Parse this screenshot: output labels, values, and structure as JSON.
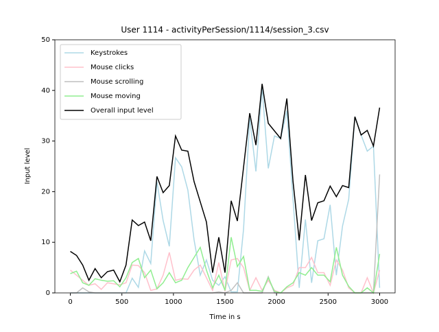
{
  "chart_data": {
    "type": "line",
    "title": "User 1114 - activityPerSession/1114/session_3.csv",
    "x_label": "Time in s",
    "y_label": "Input level",
    "xlim": [
      -150,
      3150
    ],
    "ylim": [
      0,
      50
    ],
    "xticks": [
      0,
      500,
      1000,
      1500,
      2000,
      2500,
      3000
    ],
    "yticks": [
      0,
      10,
      20,
      30,
      40,
      50
    ],
    "legend": "upper left",
    "x": [
      0,
      60,
      120,
      180,
      240,
      300,
      360,
      420,
      480,
      540,
      600,
      660,
      720,
      780,
      840,
      900,
      960,
      1020,
      1080,
      1140,
      1200,
      1260,
      1320,
      1380,
      1440,
      1500,
      1560,
      1620,
      1680,
      1740,
      1800,
      1860,
      1920,
      1980,
      2040,
      2100,
      2160,
      2220,
      2280,
      2340,
      2400,
      2460,
      2520,
      2580,
      2640,
      2700,
      2760,
      2820,
      2880,
      2940,
      3000
    ],
    "series": [
      {
        "name": "Keystrokes",
        "color": "#add8e6",
        "values": [
          0,
          0,
          0,
          0,
          0,
          0,
          0,
          0,
          0,
          0,
          2.9,
          1.1,
          8.3,
          5.8,
          22,
          14.3,
          9.2,
          26.7,
          24.9,
          20.3,
          10.5,
          3.5,
          6.5,
          2.5,
          1.5,
          3.2,
          0.2,
          0.2,
          12.6,
          34.5,
          24,
          40.5,
          24.6,
          31,
          30.5,
          36,
          18.5,
          1,
          14.5,
          2,
          10.3,
          10.7,
          17.4,
          3.5,
          13.2,
          18.5,
          34.8,
          31.2,
          28,
          29,
          1
        ]
      },
      {
        "name": "Mouse clicks",
        "color": "#ffc0cb",
        "values": [
          4.5,
          3.5,
          2.5,
          1.5,
          1.8,
          0.7,
          2,
          1.8,
          1.6,
          2,
          5.5,
          5.4,
          4,
          0.5,
          0.8,
          3.5,
          8,
          2.5,
          2.8,
          2.7,
          4.5,
          5.5,
          3,
          0.5,
          6,
          0.3,
          6.5,
          6.8,
          5,
          0.5,
          3,
          0.5,
          2.5,
          0.5,
          0,
          1,
          1.5,
          5,
          5,
          7,
          4,
          4,
          1.5,
          6.5,
          4.5,
          1,
          0,
          0,
          3,
          0,
          4.5
        ]
      },
      {
        "name": "Mouse scrolling",
        "color": "#bfbfbf",
        "values": [
          0,
          0,
          1,
          0.2,
          0,
          0,
          0,
          0,
          0,
          0,
          0,
          0,
          0,
          0,
          0,
          0,
          0,
          0,
          0,
          0,
          0,
          0,
          0,
          0,
          0.2,
          0,
          0.5,
          2,
          0,
          0,
          0,
          0,
          3.2,
          0,
          0,
          0,
          0,
          0,
          0,
          0,
          0,
          0,
          0,
          0,
          0,
          0,
          0,
          0,
          0,
          0,
          23.4
        ]
      },
      {
        "name": "Mouse moving",
        "color": "#90ee90",
        "values": [
          3.8,
          4.3,
          2,
          1.5,
          2.8,
          2.5,
          2.3,
          2.4,
          1.2,
          3,
          6,
          6.8,
          3,
          4.5,
          0.8,
          2,
          4,
          2,
          2.5,
          5,
          7,
          9,
          4.5,
          1,
          3.5,
          0.5,
          11,
          5.2,
          7.2,
          0.5,
          0.5,
          0.3,
          3,
          0.3,
          0,
          1.2,
          2,
          4,
          3.5,
          5,
          3.5,
          3.5,
          2.2,
          9,
          3.5,
          1.3,
          0,
          0,
          1,
          0,
          7.7
        ]
      },
      {
        "name": "Overall input level",
        "color": "#000000",
        "values": [
          8.2,
          7.4,
          5.5,
          2.5,
          4.8,
          3,
          4.2,
          4.5,
          2.2,
          5.5,
          14.4,
          13.3,
          14,
          10.3,
          23,
          19.8,
          21.2,
          31,
          28.2,
          28,
          22,
          18,
          14,
          4,
          11,
          4,
          18.2,
          14.2,
          24.8,
          35.5,
          29.2,
          41.3,
          33.5,
          32,
          30.5,
          38.4,
          22,
          10.4,
          23.3,
          14.3,
          17.8,
          18.2,
          21.1,
          19,
          21.2,
          20.8,
          34.8,
          31.2,
          32.1,
          29,
          36.6
        ]
      }
    ]
  }
}
